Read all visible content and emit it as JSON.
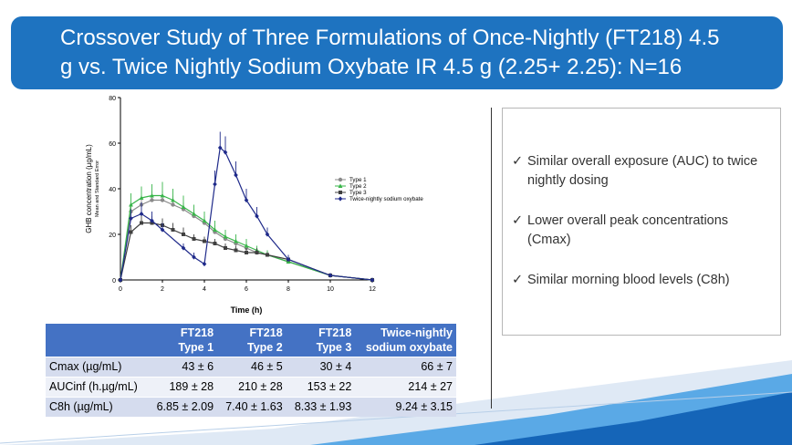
{
  "title": {
    "line1": "Crossover Study of Three Formulations of Once-Nightly (FT218) 4.5",
    "line2": "g vs. Twice Nightly Sodium Oxybate  IR 4.5 g (2.25+ 2.25): N=16"
  },
  "chart_data": {
    "type": "line",
    "xlabel": "Time (h)",
    "ylabel": "GHB concentration (µg/mL)",
    "ylabel_sub": "Mean and Standard Error",
    "xlim": [
      0,
      12
    ],
    "ylim": [
      0,
      80
    ],
    "xticks": [
      0,
      2,
      4,
      6,
      8,
      10,
      12
    ],
    "yticks": [
      0,
      20,
      40,
      60,
      80
    ],
    "grid": false,
    "legend_position": "right",
    "series": [
      {
        "name": "Type 1",
        "color": "#8a8a8a",
        "marker": "circle",
        "x": [
          0,
          0.5,
          1,
          1.5,
          2,
          2.5,
          3,
          3.5,
          4,
          4.5,
          5,
          5.5,
          6,
          6.5,
          7,
          8,
          10,
          12
        ],
        "y": [
          0,
          30,
          33,
          35,
          35,
          33,
          31,
          28,
          25,
          21,
          18,
          16,
          14,
          12,
          11,
          8,
          2,
          0
        ],
        "err": [
          0,
          4,
          4,
          4,
          4,
          4,
          3,
          3,
          3,
          3,
          2,
          2,
          2,
          2,
          2,
          1,
          1,
          0
        ]
      },
      {
        "name": "Type 2",
        "color": "#39b54a",
        "marker": "triangle",
        "x": [
          0,
          0.5,
          1,
          1.5,
          2,
          2.5,
          3,
          3.5,
          4,
          4.5,
          5,
          5.5,
          6,
          6.5,
          7,
          8,
          10,
          12
        ],
        "y": [
          0,
          33,
          36,
          37,
          37,
          35,
          32,
          29,
          26,
          22,
          19,
          17,
          15,
          13,
          11,
          8,
          2,
          0
        ],
        "err": [
          0,
          5,
          5,
          5,
          6,
          5,
          5,
          4,
          4,
          4,
          3,
          3,
          3,
          2,
          2,
          2,
          1,
          0
        ]
      },
      {
        "name": "Type 3",
        "color": "#404040",
        "marker": "square",
        "x": [
          0,
          0.5,
          1,
          1.5,
          2,
          2.5,
          3,
          3.5,
          4,
          4.5,
          5,
          5.5,
          6,
          6.5,
          7,
          8,
          10,
          12
        ],
        "y": [
          0,
          21,
          25,
          25,
          24,
          22,
          20,
          18,
          17,
          16,
          14,
          13,
          12,
          12,
          11,
          9,
          2,
          0
        ],
        "err": [
          0,
          3,
          4,
          3,
          3,
          3,
          3,
          2,
          2,
          2,
          2,
          2,
          2,
          2,
          1,
          1,
          1,
          0
        ]
      },
      {
        "name": "Twice-nightly sodium oxybate",
        "color": "#1f2a8a",
        "marker": "diamond",
        "x": [
          0,
          0.5,
          1,
          1.5,
          2,
          3,
          3.5,
          4,
          4.5,
          4.75,
          5,
          5.5,
          6,
          6.5,
          7,
          8,
          10,
          12
        ],
        "y": [
          0,
          27,
          29,
          26,
          22,
          14,
          10,
          7,
          42,
          58,
          56,
          46,
          35,
          28,
          20,
          9,
          2,
          0
        ],
        "err": [
          0,
          4,
          5,
          4,
          3,
          2,
          2,
          1,
          6,
          7,
          7,
          6,
          5,
          4,
          3,
          2,
          1,
          0
        ]
      }
    ]
  },
  "table": {
    "headers": [
      {
        "line1": "",
        "line2": ""
      },
      {
        "line1": "FT218",
        "line2": "Type 1"
      },
      {
        "line1": "FT218",
        "line2": "Type 2"
      },
      {
        "line1": "FT218",
        "line2": "Type 3"
      },
      {
        "line1": "Twice-nightly",
        "line2": "sodium oxybate"
      }
    ],
    "rows": [
      {
        "label": "Cmax (µg/mL)",
        "cells": [
          "43 ± 6",
          "46 ± 5",
          "30 ± 4",
          "66 ± 7"
        ]
      },
      {
        "label": "AUCinf (h.µg/mL)",
        "cells": [
          "189 ± 28",
          "210 ± 28",
          "153 ± 22",
          "214 ± 27"
        ]
      },
      {
        "label": "C8h (µg/mL)",
        "cells": [
          "6.85 ± 2.09",
          "7.40 ± 1.63",
          "8.33 ± 1.93",
          "9.24 ± 3.15"
        ]
      }
    ]
  },
  "bullets": [
    {
      "icon": "check-icon",
      "text": "Similar overall exposure (AUC) to twice nightly dosing"
    },
    {
      "icon": "check-icon",
      "text": "Lower overall peak concentrations (Cmax)"
    },
    {
      "icon": "check-icon",
      "text": "Similar morning blood levels (C8h)"
    }
  ],
  "check_glyph": "✓",
  "colors": {
    "banner": "#1e73c0",
    "table_header": "#4472c4",
    "wave_dark": "#1565b8",
    "wave_light": "#5aa9e6"
  }
}
